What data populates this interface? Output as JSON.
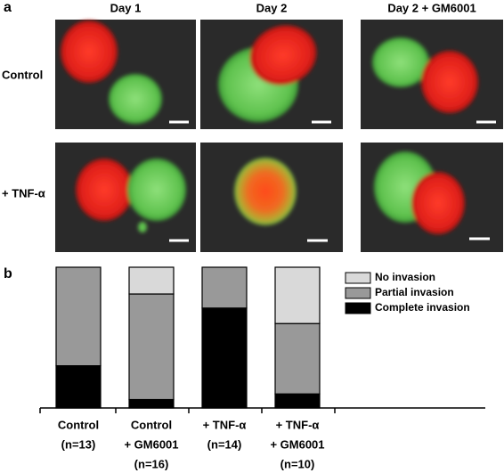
{
  "panel_labels": [
    "a",
    "b"
  ],
  "panel_a": {
    "columns": [
      "Day 1",
      "Day 2",
      "Day 2 + GM6001"
    ],
    "rows": [
      "Control",
      "+ TNF-α"
    ]
  },
  "chart_data": {
    "type": "stacked_bar",
    "categories": [
      [
        "Control",
        "(n=13)"
      ],
      [
        "Control",
        "+ GM6001",
        "(n=16)"
      ],
      [
        "+ TNF-α",
        "(n=14)"
      ],
      [
        "+ TNF-α",
        "+ GM6001",
        "(n=10)"
      ]
    ],
    "series": [
      {
        "name": "No invasion",
        "color": "#d9d9d9",
        "values": [
          0,
          19,
          0,
          40
        ]
      },
      {
        "name": "Partial invasion",
        "color": "#999999",
        "values": [
          70,
          75,
          29,
          50
        ]
      },
      {
        "name": "Complete invasion",
        "color": "#000000",
        "values": [
          30,
          6,
          71,
          10
        ]
      }
    ],
    "ylim": [
      0,
      100
    ]
  }
}
